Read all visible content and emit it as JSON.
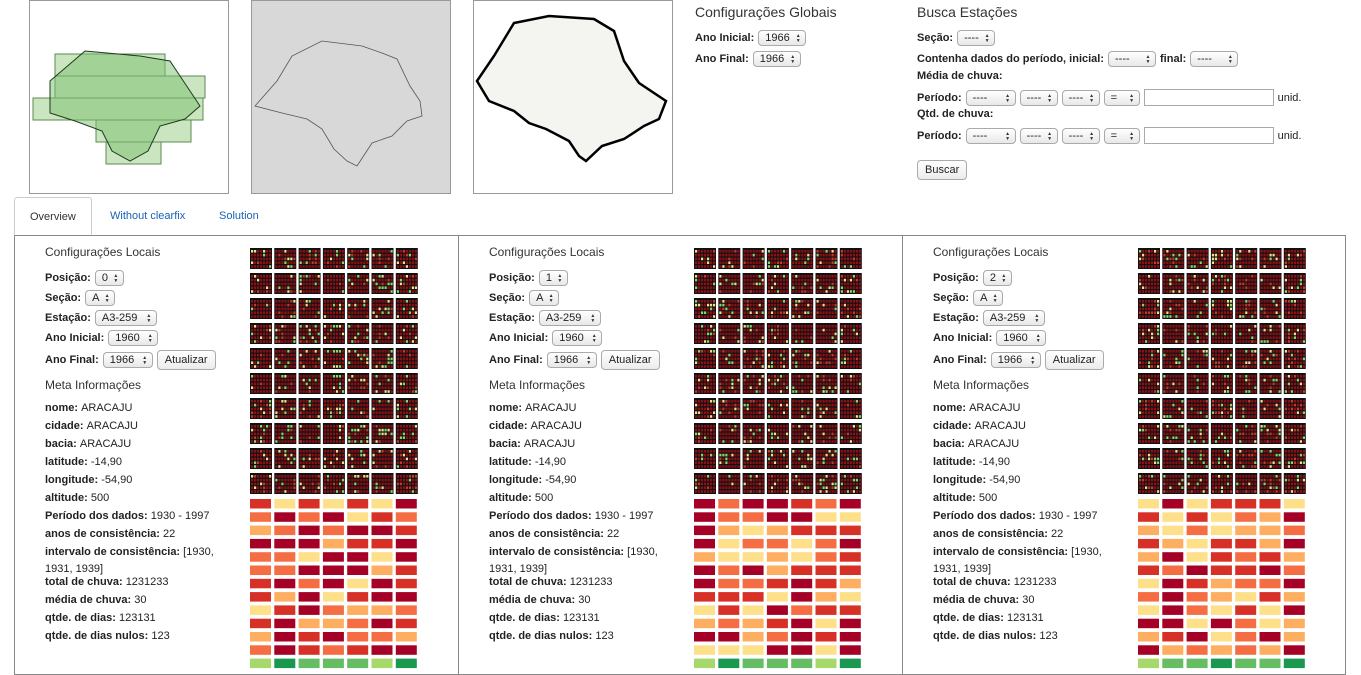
{
  "maps": [
    {
      "name": "grid-map"
    },
    {
      "name": "outline-map"
    },
    {
      "name": "detail-map"
    }
  ],
  "global": {
    "title": "Configurações Globais",
    "ano_inicial_label": "Ano Inicial:",
    "ano_inicial_value": "1966",
    "ano_final_label": "Ano Final:",
    "ano_final_value": "1966"
  },
  "busca": {
    "title": "Busca Estações",
    "secao_label": "Seção:",
    "secao_value": "----",
    "contenha_label": "Contenha dados do período, inicial:",
    "contenha_inicial_value": "----",
    "final_label": "final:",
    "final_value": "----",
    "media_label": "Média de chuva:",
    "periodo_label": "Período:",
    "dash": "----",
    "eq": "=",
    "unid": "unid.",
    "qtd_label": "Qtd. de chuva:",
    "buscar": "Buscar"
  },
  "tabs": [
    {
      "label": "Overview"
    },
    {
      "label": "Without clearfix"
    },
    {
      "label": "Solution"
    }
  ],
  "panel_labels": {
    "config_title": "Configurações Locais",
    "posicao": "Posição:",
    "secao": "Seção:",
    "estacao": "Estação:",
    "ano_inicial": "Ano Inicial:",
    "ano_final": "Ano Final:",
    "atualizar": "Atualizar",
    "meta_title": "Meta Informações",
    "nome": "nome:",
    "cidade": "cidade:",
    "bacia": "bacia:",
    "latitude": "latitude:",
    "longitude": "longitude:",
    "altitude": "altitude:",
    "periodo": "Período dos dados:",
    "anos": "anos de consistência:",
    "intervalo": "intervalo de consistência:",
    "total": "total de chuva:",
    "media": "média de chuva:",
    "qtde_dias": "qtde. de dias:",
    "qtde_nulos": "qtde. de dias nulos:"
  },
  "panels": [
    {
      "posicao": "0",
      "secao": "A",
      "estacao": "A3-259",
      "ano_inicial": "1960",
      "ano_final": "1966",
      "meta": {
        "nome": "ARACAJU",
        "cidade": "ARACAJU",
        "bacia": "ARACAJU",
        "latitude": "-14,90",
        "longitude": "-54,90",
        "altitude": "500",
        "periodo": "1930 - 1997",
        "anos": "22",
        "intervalo_1": "[1930,",
        "intervalo_2": "1931, 1939]",
        "total": "1231233",
        "media": "30",
        "qtde_dias": "123131",
        "qtde_nulos": "123"
      }
    },
    {
      "posicao": "1",
      "secao": "A",
      "estacao": "A3-259",
      "ano_inicial": "1960",
      "ano_final": "1966",
      "meta": {
        "nome": "ARACAJU",
        "cidade": "ARACAJU",
        "bacia": "ARACAJU",
        "latitude": "-14,90",
        "longitude": "-54,90",
        "altitude": "500",
        "periodo": "1930 - 1997",
        "anos": "22",
        "intervalo_1": "[1930,",
        "intervalo_2": "1931, 1939]",
        "total": "1231233",
        "media": "30",
        "qtde_dias": "123131",
        "qtde_nulos": "123"
      }
    },
    {
      "posicao": "2",
      "secao": "A",
      "estacao": "A3-259",
      "ano_inicial": "1960",
      "ano_final": "1966",
      "meta": {
        "nome": "ARACAJU",
        "cidade": "ARACAJU",
        "bacia": "ARACAJU",
        "latitude": "-14,90",
        "longitude": "-54,90",
        "altitude": "500",
        "periodo": "1930 - 1997",
        "anos": "22",
        "intervalo_1": "[1930,",
        "intervalo_2": "1931, 1939]",
        "total": "1231233",
        "media": "30",
        "qtde_dias": "123131",
        "qtde_nulos": "123"
      }
    }
  ],
  "colors": {
    "tab_link": "#1a62b5",
    "heat_scale": [
      "#a50026",
      "#d73027",
      "#f46d43",
      "#fdae61",
      "#fee08b",
      "#d9ef8b",
      "#a6d96a",
      "#66bd63",
      "#1a9850"
    ]
  }
}
